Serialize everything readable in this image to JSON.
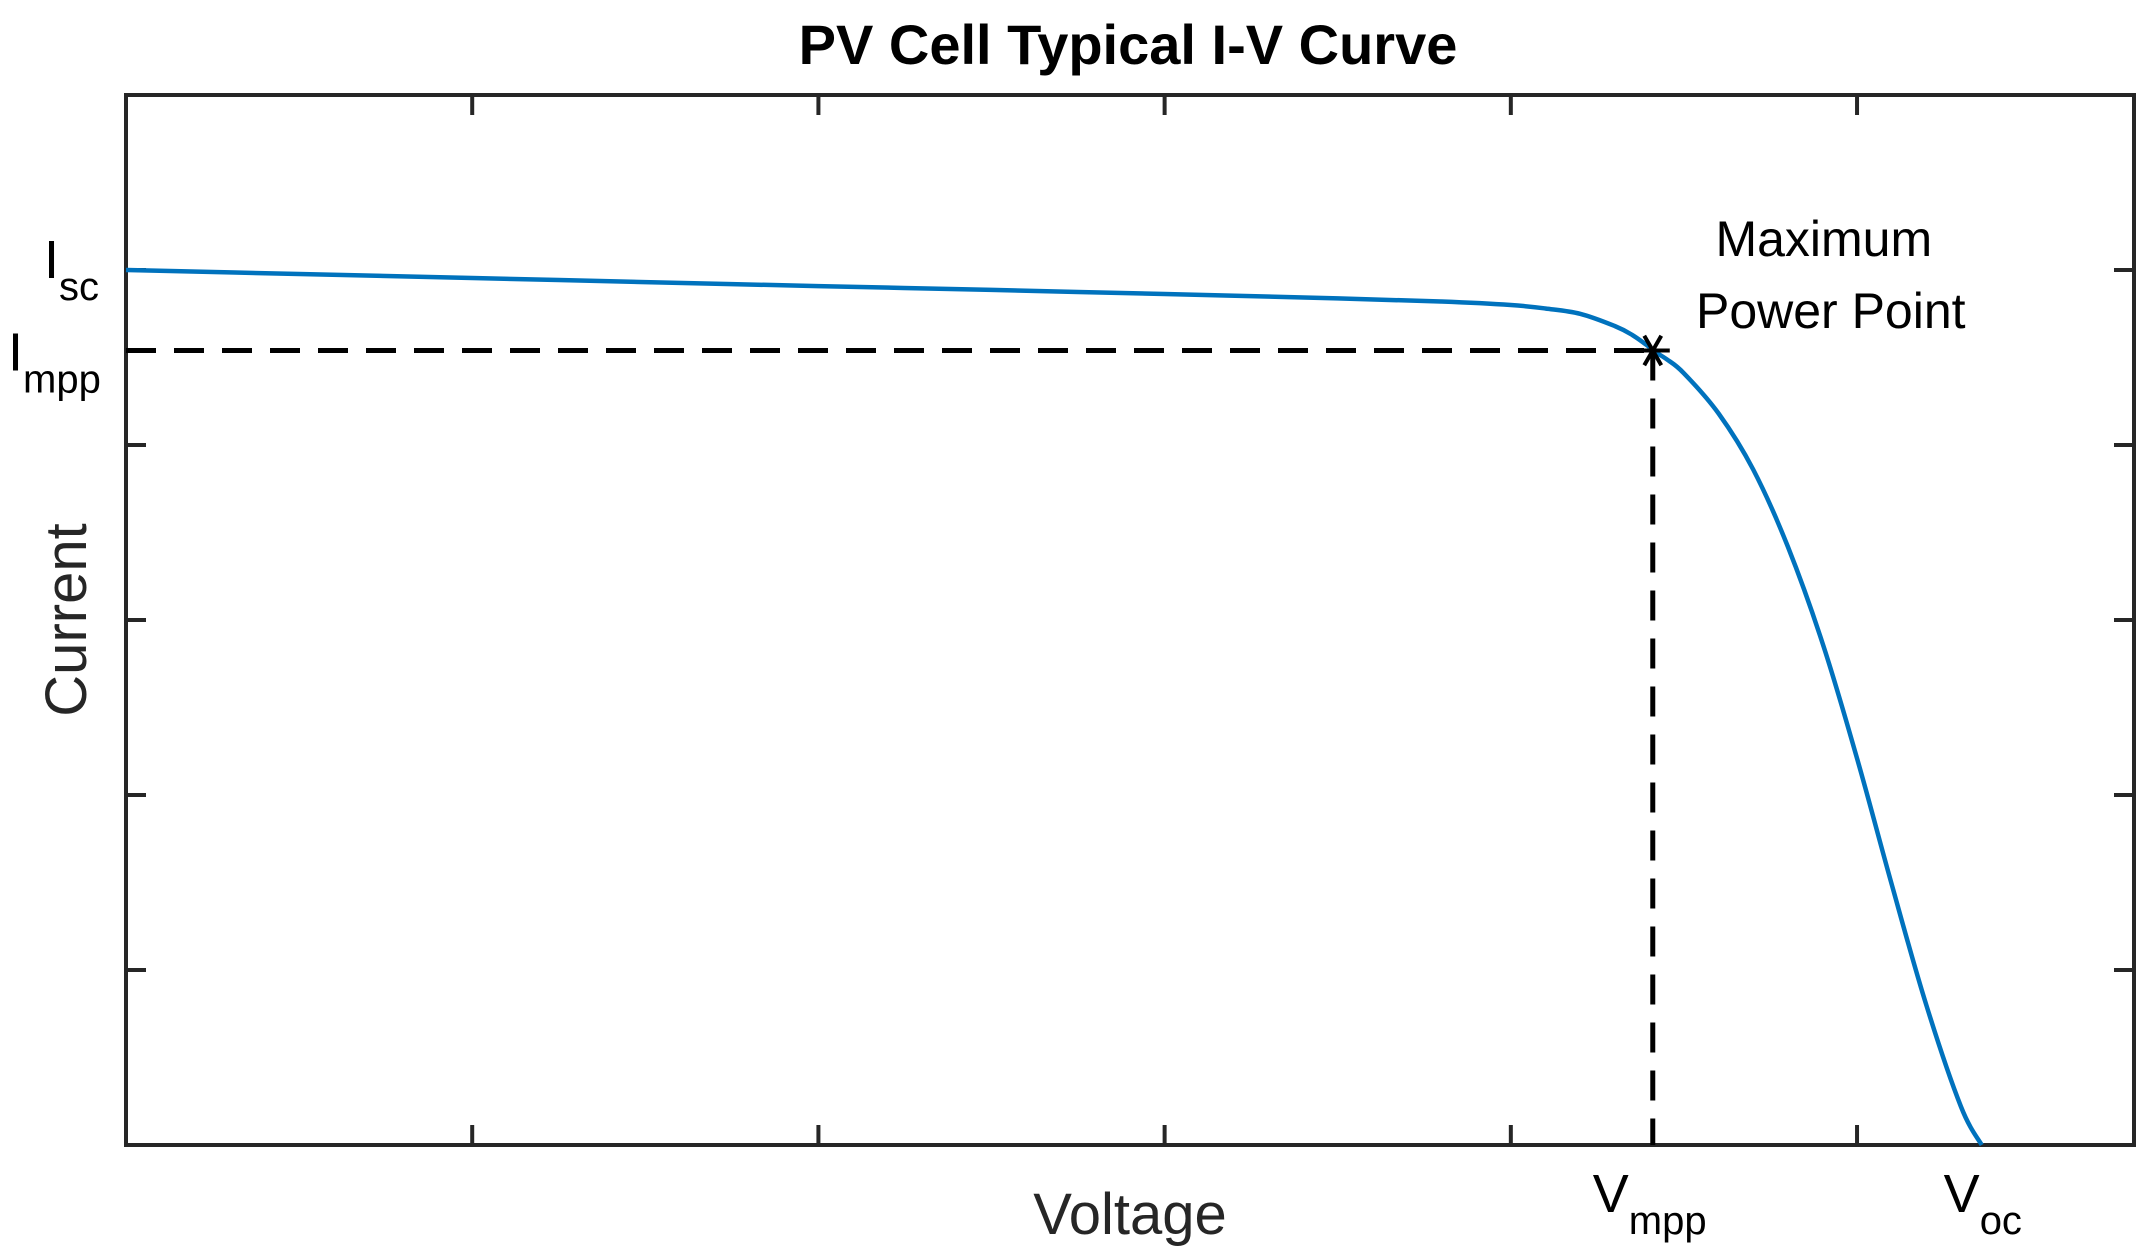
{
  "chart_data": {
    "type": "line",
    "title": "PV Cell Typical I-V Curve",
    "xlabel": "Voltage",
    "ylabel": "Current",
    "xlim": [
      0,
      5.8
    ],
    "ylim": [
      0,
      6
    ],
    "xtick_values": [
      1,
      2,
      3,
      4,
      5
    ],
    "ytick_values": [
      1,
      2,
      3,
      4,
      5
    ],
    "series": [
      {
        "name": "I-V curve",
        "color": "#0072BD",
        "x": [
          0,
          0.5,
          1,
          1.5,
          2,
          2.5,
          3,
          3.5,
          3.8,
          4.0,
          4.1,
          4.2,
          4.3,
          4.35,
          4.4,
          4.41,
          4.45,
          4.5,
          4.6,
          4.7,
          4.8,
          4.9,
          5.0,
          5.1,
          5.2,
          5.3,
          5.36
        ],
        "y": [
          5.0,
          4.977,
          4.954,
          4.931,
          4.908,
          4.886,
          4.863,
          4.838,
          4.82,
          4.8,
          4.78,
          4.75,
          4.68,
          4.63,
          4.56,
          4.54,
          4.49,
          4.41,
          4.18,
          3.86,
          3.42,
          2.87,
          2.21,
          1.49,
          0.8,
          0.22,
          0.0
        ]
      }
    ],
    "mpp": {
      "x": 4.41,
      "y": 4.54
    },
    "mpp_marker": "*",
    "annotation": {
      "line1": "Maximum",
      "line2": "Power Point"
    },
    "custom_ticks": {
      "y": [
        {
          "main": "I",
          "sub": "sc",
          "value": 5.0
        },
        {
          "main": "I",
          "sub": "mpp",
          "value": 4.54
        }
      ],
      "x": [
        {
          "main": "V",
          "sub": "mpp",
          "value": 4.41
        },
        {
          "main": "V",
          "sub": "oc",
          "value": 5.36
        }
      ]
    }
  }
}
